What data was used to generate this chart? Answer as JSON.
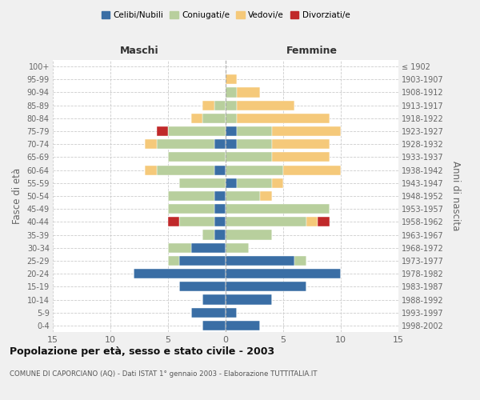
{
  "age_groups": [
    "0-4",
    "5-9",
    "10-14",
    "15-19",
    "20-24",
    "25-29",
    "30-34",
    "35-39",
    "40-44",
    "45-49",
    "50-54",
    "55-59",
    "60-64",
    "65-69",
    "70-74",
    "75-79",
    "80-84",
    "85-89",
    "90-94",
    "95-99",
    "100+"
  ],
  "birth_years": [
    "1998-2002",
    "1993-1997",
    "1988-1992",
    "1983-1987",
    "1978-1982",
    "1973-1977",
    "1968-1972",
    "1963-1967",
    "1958-1962",
    "1953-1957",
    "1948-1952",
    "1943-1947",
    "1938-1942",
    "1933-1937",
    "1928-1932",
    "1923-1927",
    "1918-1922",
    "1913-1917",
    "1908-1912",
    "1903-1907",
    "≤ 1902"
  ],
  "male": {
    "celibi": [
      2,
      3,
      2,
      4,
      8,
      4,
      3,
      1,
      1,
      1,
      1,
      0,
      1,
      0,
      1,
      0,
      0,
      0,
      0,
      0,
      0
    ],
    "coniugati": [
      0,
      0,
      0,
      0,
      0,
      1,
      2,
      1,
      3,
      4,
      4,
      4,
      5,
      5,
      5,
      5,
      2,
      1,
      0,
      0,
      0
    ],
    "vedovi": [
      0,
      0,
      0,
      0,
      0,
      0,
      0,
      0,
      0,
      0,
      0,
      0,
      1,
      0,
      1,
      0,
      1,
      1,
      0,
      0,
      0
    ],
    "divorziati": [
      0,
      0,
      0,
      0,
      0,
      0,
      0,
      0,
      1,
      0,
      0,
      0,
      0,
      0,
      0,
      1,
      0,
      0,
      0,
      0,
      0
    ]
  },
  "female": {
    "celibi": [
      3,
      1,
      4,
      7,
      10,
      6,
      0,
      0,
      0,
      0,
      0,
      1,
      0,
      0,
      1,
      1,
      0,
      0,
      0,
      0,
      0
    ],
    "coniugati": [
      0,
      0,
      0,
      0,
      0,
      1,
      2,
      4,
      7,
      9,
      3,
      3,
      5,
      4,
      3,
      3,
      1,
      1,
      1,
      0,
      0
    ],
    "vedovi": [
      0,
      0,
      0,
      0,
      0,
      0,
      0,
      0,
      1,
      0,
      1,
      1,
      5,
      5,
      5,
      6,
      8,
      5,
      2,
      1,
      0
    ],
    "divorziati": [
      0,
      0,
      0,
      0,
      0,
      0,
      0,
      0,
      1,
      0,
      0,
      0,
      0,
      0,
      0,
      0,
      0,
      0,
      0,
      0,
      0
    ]
  },
  "colors": {
    "celibi": "#3A6EA5",
    "coniugati": "#B8CF9D",
    "vedovi": "#F5C97A",
    "divorziati": "#C0292A"
  },
  "xlim": 15,
  "title": "Popolazione per età, sesso e stato civile - 2003",
  "subtitle": "COMUNE DI CAPORCIANO (AQ) - Dati ISTAT 1° gennaio 2003 - Elaborazione TUTTITALIA.IT",
  "xlabel_left": "Maschi",
  "xlabel_right": "Femmine",
  "ylabel_left": "Fasce di età",
  "ylabel_right": "Anni di nascita",
  "bg_color": "#f0f0f0",
  "plot_bg_color": "#ffffff",
  "grid_color": "#cccccc"
}
